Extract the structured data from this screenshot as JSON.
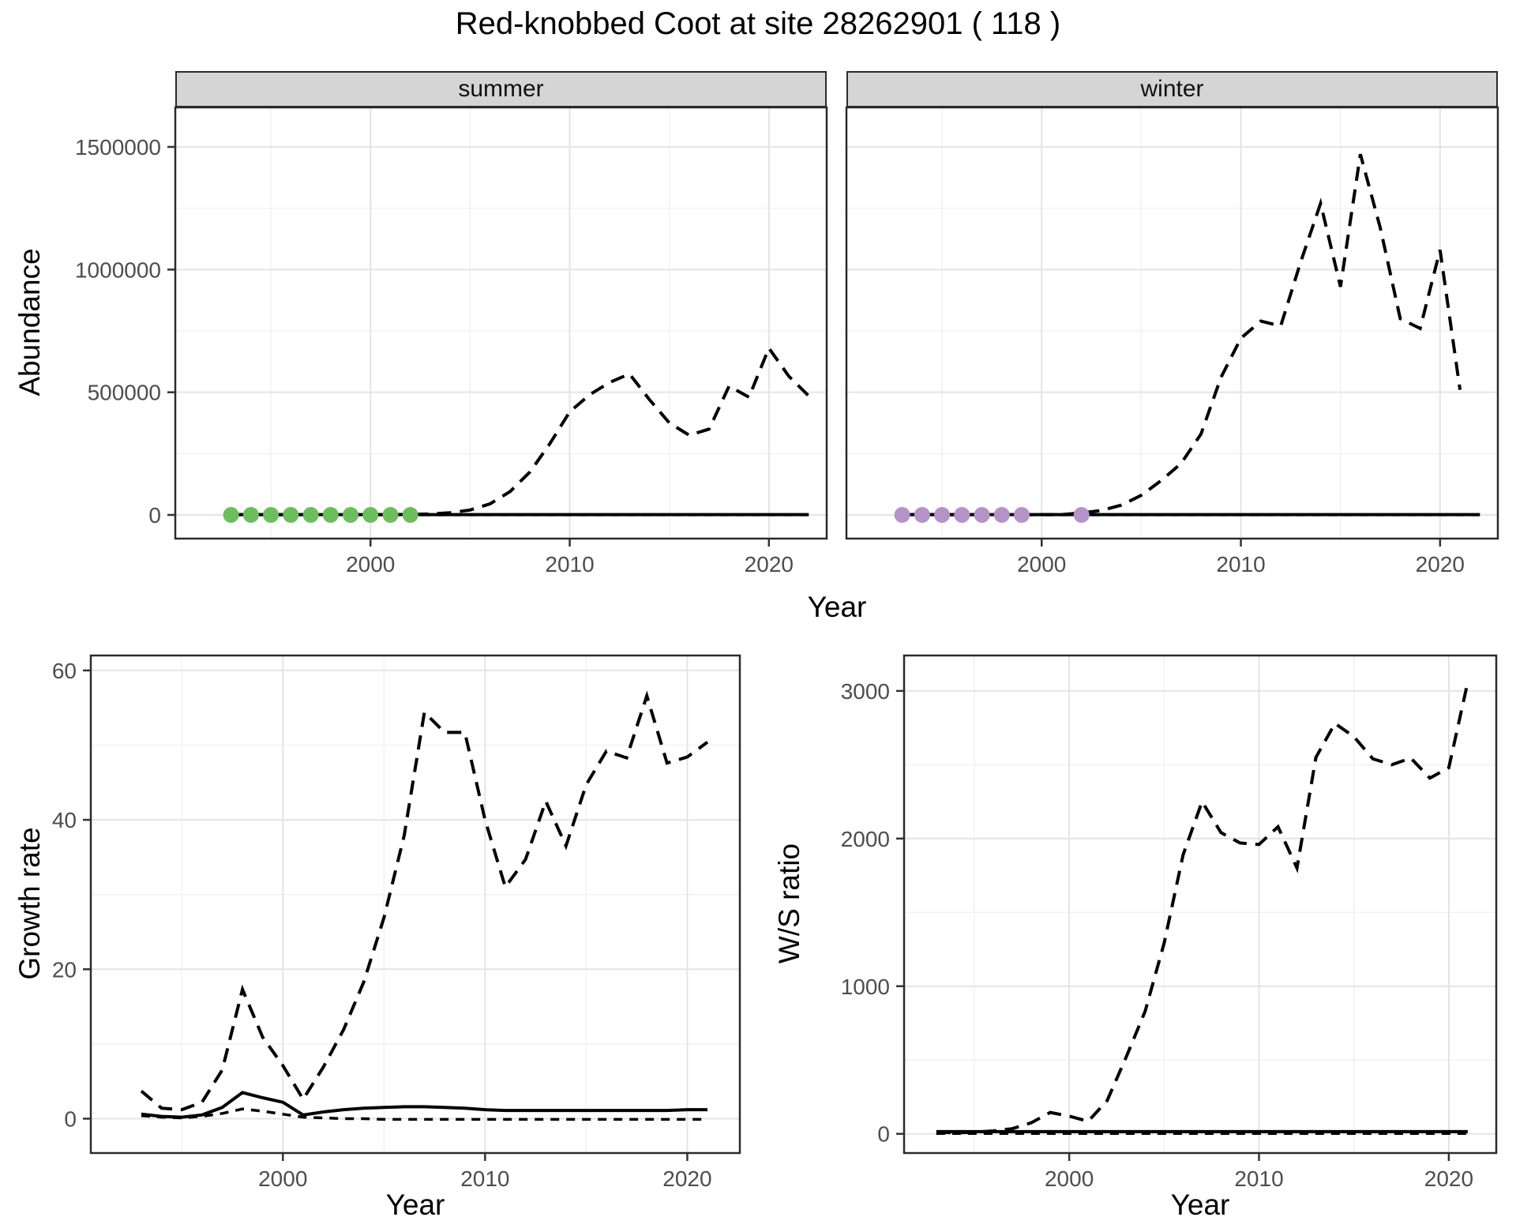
{
  "title": "Red-knobbed Coot at site 28262901 ( 118 )",
  "colors": {
    "summer_points": "#6BBE5B",
    "winter_points": "#B593C8",
    "line": "#000000",
    "tick_text": "#4D4D4D"
  },
  "top_figure": {
    "ylabel": "Abundance",
    "xlabel": "Year"
  },
  "bottom_left": {
    "ylabel": "Growth rate",
    "xlabel": "Year"
  },
  "bottom_right": {
    "ylabel": "W/S ratio",
    "xlabel": "Year"
  },
  "chart_data": [
    {
      "id": "abundance-summer",
      "type": "line",
      "facet_label": "summer",
      "xlabel": "Year",
      "ylabel": "Abundance",
      "xlim": [
        1990.2,
        2022.9
      ],
      "ylim": [
        -96500,
        1661000
      ],
      "x_ticks": [
        2000,
        2010,
        2020
      ],
      "x_tick_labels": [
        "2000",
        "2010",
        "2020"
      ],
      "x_minor": [
        1995,
        2005,
        2015
      ],
      "y_ticks": [
        0,
        500000,
        1000000,
        1500000
      ],
      "y_tick_labels": [
        "0",
        "500000",
        "1000000",
        "1500000"
      ],
      "y_minor": [
        250000,
        750000,
        1250000
      ],
      "grid": true,
      "legend": "none",
      "series": [
        {
          "name": "model-upper-ci",
          "style": "dashed",
          "x": [
            1993,
            1994,
            1995,
            1996,
            1997,
            1998,
            1999,
            2000,
            2001,
            2002,
            2003,
            2004,
            2005,
            2006,
            2007,
            2008,
            2009,
            2010,
            2011,
            2012,
            2013,
            2014,
            2015,
            2016,
            2017,
            2018,
            2019,
            2020,
            2021,
            2022
          ],
          "y": [
            1500,
            1500,
            1500,
            1500,
            1500,
            1500,
            1500,
            1500,
            1500,
            2000,
            4000,
            9000,
            20000,
            45000,
            95000,
            175000,
            290000,
            420000,
            490000,
            540000,
            575000,
            470000,
            375000,
            325000,
            350000,
            525000,
            480000,
            680000,
            565000,
            485000
          ]
        },
        {
          "name": "model-lower-ci",
          "style": "dashed-short",
          "x": [
            1993,
            1994,
            1995,
            1996,
            1997,
            1998,
            1999,
            2000,
            2001,
            2002,
            2003,
            2004,
            2005,
            2006,
            2007,
            2008,
            2009,
            2010,
            2011,
            2012,
            2013,
            2014,
            2015,
            2016,
            2017,
            2018,
            2019,
            2020,
            2021,
            2022
          ],
          "y": [
            300,
            300,
            300,
            300,
            300,
            300,
            300,
            300,
            300,
            300,
            300,
            300,
            300,
            300,
            300,
            300,
            300,
            300,
            300,
            300,
            300,
            300,
            300,
            300,
            300,
            300,
            300,
            300,
            300,
            300
          ]
        },
        {
          "name": "model-estimate",
          "style": "solid",
          "x": [
            1993,
            1994,
            1995,
            1996,
            1997,
            1998,
            1999,
            2000,
            2001,
            2002,
            2003,
            2004,
            2005,
            2006,
            2007,
            2008,
            2009,
            2010,
            2011,
            2012,
            2013,
            2014,
            2015,
            2016,
            2017,
            2018,
            2019,
            2020,
            2021,
            2022
          ],
          "y": [
            1200,
            1200,
            1200,
            1200,
            1200,
            1200,
            1200,
            1200,
            1200,
            1200,
            1200,
            1200,
            1200,
            1200,
            1200,
            1200,
            1200,
            1200,
            1200,
            1200,
            1200,
            1200,
            1200,
            1200,
            1200,
            1200,
            1200,
            1200,
            1200,
            1200
          ]
        }
      ],
      "points": {
        "name": "observed-summer-counts",
        "color": "#6BBE5B",
        "x": [
          1993,
          1994,
          1995,
          1996,
          1997,
          1998,
          1999,
          2000,
          2001,
          2002
        ],
        "y": [
          0,
          0,
          0,
          0,
          0,
          0,
          0,
          0,
          0,
          0
        ]
      }
    },
    {
      "id": "abundance-winter",
      "type": "line",
      "facet_label": "winter",
      "xlabel": "Year",
      "ylabel": "Abundance",
      "xlim": [
        1990.2,
        2022.9
      ],
      "ylim": [
        -96500,
        1661000
      ],
      "x_ticks": [
        2000,
        2010,
        2020
      ],
      "x_tick_labels": [
        "2000",
        "2010",
        "2020"
      ],
      "x_minor": [
        1995,
        2005,
        2015
      ],
      "y_ticks": [
        0,
        500000,
        1000000,
        1500000
      ],
      "y_tick_labels": [
        "0",
        "500000",
        "1000000",
        "1500000"
      ],
      "y_minor": [
        250000,
        750000,
        1250000
      ],
      "grid": true,
      "legend": "none",
      "series": [
        {
          "name": "model-upper-ci",
          "style": "dashed",
          "x": [
            1993,
            1994,
            1995,
            1996,
            1997,
            1998,
            1999,
            2000,
            2001,
            2002,
            2003,
            2004,
            2005,
            2006,
            2007,
            2008,
            2009,
            2010,
            2011,
            2012,
            2013,
            2014,
            2015,
            2016,
            2017,
            2018,
            2019,
            2020,
            2021
          ],
          "y": [
            1500,
            1500,
            1500,
            1500,
            1500,
            1500,
            1500,
            1500,
            1500,
            8000,
            18000,
            40000,
            80000,
            140000,
            210000,
            330000,
            560000,
            720000,
            790000,
            770000,
            1030000,
            1270000,
            930000,
            1470000,
            1170000,
            800000,
            760000,
            1080000,
            510000
          ]
        },
        {
          "name": "model-lower-ci",
          "style": "dashed-short",
          "x": [
            1993,
            1994,
            1995,
            1996,
            1997,
            1998,
            1999,
            2000,
            2001,
            2002,
            2003,
            2004,
            2005,
            2006,
            2007,
            2008,
            2009,
            2010,
            2011,
            2012,
            2013,
            2014,
            2015,
            2016,
            2017,
            2018,
            2019,
            2020,
            2021,
            2022
          ],
          "y": [
            300,
            300,
            300,
            300,
            300,
            300,
            300,
            300,
            300,
            300,
            300,
            300,
            300,
            300,
            300,
            300,
            300,
            300,
            300,
            300,
            300,
            300,
            300,
            300,
            300,
            300,
            300,
            300,
            300,
            300
          ]
        },
        {
          "name": "model-estimate",
          "style": "solid",
          "x": [
            1993,
            1994,
            1995,
            1996,
            1997,
            1998,
            1999,
            2000,
            2001,
            2002,
            2003,
            2004,
            2005,
            2006,
            2007,
            2008,
            2009,
            2010,
            2011,
            2012,
            2013,
            2014,
            2015,
            2016,
            2017,
            2018,
            2019,
            2020,
            2021,
            2022
          ],
          "y": [
            1200,
            1200,
            1200,
            1200,
            1200,
            1200,
            1200,
            1200,
            1200,
            1200,
            1200,
            1200,
            1200,
            1200,
            1200,
            1200,
            1200,
            1200,
            1200,
            1200,
            1200,
            1200,
            1200,
            1200,
            1200,
            1200,
            1200,
            1200,
            1200,
            1200
          ]
        }
      ],
      "points": {
        "name": "observed-winter-counts",
        "color": "#B593C8",
        "x": [
          1993,
          1994,
          1995,
          1996,
          1997,
          1998,
          1999,
          2002
        ],
        "y": [
          0,
          0,
          0,
          0,
          0,
          0,
          0,
          0
        ]
      }
    },
    {
      "id": "growth-rate",
      "type": "line",
      "facet_label": "",
      "xlabel": "Year",
      "ylabel": "Growth rate",
      "xlim": [
        1990.5,
        2022.6
      ],
      "ylim": [
        -4.6,
        62
      ],
      "x_ticks": [
        2000,
        2010,
        2020
      ],
      "x_tick_labels": [
        "2000",
        "2010",
        "2020"
      ],
      "x_minor": [
        1995,
        2005,
        2015
      ],
      "y_ticks": [
        0,
        20,
        40,
        60
      ],
      "y_tick_labels": [
        "0",
        "20",
        "40",
        "60"
      ],
      "y_minor": [
        10,
        30,
        50
      ],
      "grid": true,
      "legend": "none",
      "series": [
        {
          "name": "growth-upper-ci",
          "style": "dashed",
          "x": [
            1993,
            1994,
            1995,
            1996,
            1997,
            1998,
            1999,
            2000,
            2001,
            2002,
            2003,
            2004,
            2005,
            2006,
            2007,
            2008,
            2009,
            2010,
            2011,
            2012,
            2013,
            2014,
            2015,
            2016,
            2017,
            2018,
            2019,
            2020,
            2021
          ],
          "y": [
            3.7,
            1.4,
            1.2,
            2.2,
            6.5,
            17.3,
            10.9,
            7.1,
            2.6,
            6.9,
            11.9,
            18.3,
            26.9,
            37.9,
            54.4,
            51.7,
            51.7,
            40.0,
            31.0,
            34.7,
            42.5,
            36.5,
            44.7,
            49.2,
            48.3,
            56.6,
            47.6,
            48.4,
            50.4
          ]
        },
        {
          "name": "growth-lower-ci",
          "style": "dashed-short",
          "x": [
            1993,
            1994,
            1995,
            1996,
            1997,
            1998,
            1999,
            2000,
            2001,
            2002,
            2003,
            2004,
            2005,
            2006,
            2007,
            2008,
            2009,
            2010,
            2011,
            2012,
            2013,
            2014,
            2015,
            2016,
            2017,
            2018,
            2019,
            2020,
            2021
          ],
          "y": [
            0.4,
            0.2,
            0.1,
            0.3,
            0.7,
            1.3,
            1.0,
            0.6,
            0.2,
            0.1,
            0.0,
            0.0,
            -0.1,
            -0.1,
            -0.1,
            -0.1,
            -0.1,
            -0.1,
            -0.1,
            -0.1,
            -0.1,
            -0.1,
            -0.1,
            -0.1,
            -0.1,
            -0.1,
            -0.1,
            -0.1,
            -0.1
          ]
        },
        {
          "name": "growth-estimate",
          "style": "solid",
          "x": [
            1993,
            1994,
            1995,
            1996,
            1997,
            1998,
            1999,
            2000,
            2001,
            2002,
            2003,
            2004,
            2005,
            2006,
            2007,
            2008,
            2009,
            2010,
            2011,
            2012,
            2013,
            2014,
            2015,
            2016,
            2017,
            2018,
            2019,
            2020,
            2021
          ],
          "y": [
            0.6,
            0.3,
            0.2,
            0.5,
            1.5,
            3.5,
            2.8,
            2.2,
            0.5,
            0.9,
            1.2,
            1.4,
            1.5,
            1.6,
            1.6,
            1.5,
            1.4,
            1.2,
            1.1,
            1.1,
            1.1,
            1.1,
            1.1,
            1.1,
            1.1,
            1.1,
            1.1,
            1.2,
            1.2
          ]
        }
      ],
      "points": null
    },
    {
      "id": "ws-ratio",
      "type": "line",
      "facet_label": "",
      "xlabel": "Year",
      "ylabel": "W/S ratio",
      "xlim": [
        1991.3,
        2022.5
      ],
      "ylim": [
        -130,
        3240
      ],
      "x_ticks": [
        2000,
        2010,
        2020
      ],
      "x_tick_labels": [
        "2000",
        "2010",
        "2020"
      ],
      "x_minor": [
        1995,
        2005,
        2015
      ],
      "y_ticks": [
        0,
        1000,
        2000,
        3000
      ],
      "y_tick_labels": [
        "0",
        "1000",
        "2000",
        "3000"
      ],
      "y_minor": [
        500,
        1500,
        2500
      ],
      "grid": true,
      "legend": "none",
      "series": [
        {
          "name": "ws-upper-ci",
          "style": "dashed",
          "x": [
            1993,
            1994,
            1995,
            1996,
            1997,
            1998,
            1999,
            2000,
            2001,
            2002,
            2003,
            2004,
            2005,
            2006,
            2007,
            2008,
            2009,
            2010,
            2011,
            2012,
            2013,
            2014,
            2015,
            2016,
            2017,
            2018,
            2019,
            2020,
            2021
          ],
          "y": [
            10,
            8,
            10,
            20,
            35,
            75,
            145,
            120,
            85,
            225,
            520,
            830,
            1290,
            1890,
            2250,
            2040,
            1970,
            1960,
            2080,
            1800,
            2550,
            2780,
            2690,
            2540,
            2500,
            2545,
            2410,
            2480,
            3060
          ]
        },
        {
          "name": "ws-lower-ci",
          "style": "dashed-short",
          "x": [
            1993,
            1994,
            1995,
            1996,
            1997,
            1998,
            1999,
            2000,
            2001,
            2002,
            2003,
            2004,
            2005,
            2006,
            2007,
            2008,
            2009,
            2010,
            2011,
            2012,
            2013,
            2014,
            2015,
            2016,
            2017,
            2018,
            2019,
            2020,
            2021
          ],
          "y": [
            2,
            2,
            2,
            2,
            2,
            2,
            2,
            2,
            2,
            2,
            2,
            2,
            2,
            2,
            2,
            2,
            2,
            2,
            2,
            2,
            2,
            2,
            2,
            2,
            2,
            2,
            2,
            2,
            2
          ]
        },
        {
          "name": "ws-estimate",
          "style": "solid",
          "x": [
            1993,
            1994,
            1995,
            1996,
            1997,
            1998,
            1999,
            2000,
            2001,
            2002,
            2003,
            2004,
            2005,
            2006,
            2007,
            2008,
            2009,
            2010,
            2011,
            2012,
            2013,
            2014,
            2015,
            2016,
            2017,
            2018,
            2019,
            2020,
            2021
          ],
          "y": [
            15,
            15,
            15,
            15,
            15,
            15,
            15,
            15,
            15,
            15,
            15,
            15,
            15,
            15,
            15,
            15,
            15,
            15,
            15,
            15,
            15,
            15,
            15,
            15,
            15,
            15,
            15,
            15,
            15
          ]
        }
      ],
      "points": null
    }
  ]
}
